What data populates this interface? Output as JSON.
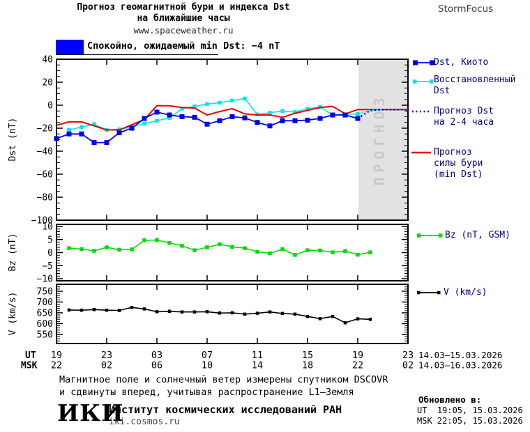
{
  "header": {
    "title_line1": "Прогноз геомагнитной бури и индекса Dst",
    "title_line2": "на ближайшие часы",
    "website": "www.spaceweather.ru",
    "brand": "StormFocus"
  },
  "status": {
    "label": "Спокойно, ожидаемый min Dst: −4 nT",
    "box_color": "#0000ff"
  },
  "legend": {
    "dst_kyoto": "Dst, Киото",
    "restored_line1": "Восстановленный",
    "restored_line2": "Dst",
    "forecast_line1": "Прогноз Dst",
    "forecast_line2": "на 2-4 часа",
    "storm_line1": "Прогноз",
    "storm_line2": "силы бури",
    "storm_line3": "(min Dst)",
    "bz": "Bz (nT, GSM)",
    "v": "V (km/s)"
  },
  "chart_data": {
    "type": "line",
    "x_axis": {
      "ut_label": "UT",
      "msk_label": "MSK",
      "ut_ticks": [
        "19",
        "23",
        "03",
        "07",
        "11",
        "15",
        "19",
        "23"
      ],
      "msk_ticks": [
        "22",
        "02",
        "06",
        "10",
        "14",
        "18",
        "22",
        "02"
      ],
      "ut_date_range": "14.03–15.03.2026",
      "msk_date_range": "14.03–16.03.2026",
      "hours_span": 28,
      "tick_step_hours": 4
    },
    "forecast_region": {
      "label": "ПРОГНОЗ",
      "start_hour": 24,
      "bg_color": "#e2e2e2",
      "text_color": "#c9c9c9"
    },
    "panels": [
      {
        "id": "dst",
        "ylabel": "Dst (nT)",
        "ylim": [
          -100,
          40
        ],
        "yticks": [
          40,
          20,
          0,
          -20,
          -40,
          -60,
          -80,
          -100
        ],
        "minor_step": 5
      },
      {
        "id": "bz",
        "ylabel": "Bz (nT)",
        "ylim": [
          -10.8,
          10.8
        ],
        "yticks": [
          10,
          5,
          0,
          -5,
          -10
        ],
        "minor_step": 1
      },
      {
        "id": "v",
        "ylabel": "V (km/s)",
        "ylim": [
          508,
          782
        ],
        "yticks": [
          750,
          700,
          650,
          600,
          550
        ],
        "minor_step": 10
      }
    ],
    "series": [
      {
        "name": "dst_restored",
        "panel": "dst",
        "color": "#00e8e8",
        "style": "solid",
        "width": 1.6,
        "marker_size": 5.5,
        "start_hour": 1,
        "values": [
          -21.5,
          -19,
          -16.5,
          -21.5,
          -21,
          -19,
          -16,
          -13.5,
          -11,
          -3,
          -1,
          1,
          2.2,
          4,
          5.8,
          -8,
          -6.5,
          -5,
          -6,
          -3,
          -1.5,
          -8.5,
          -8,
          -7.5
        ]
      },
      {
        "name": "storm_forecast",
        "panel": "dst",
        "color": "#e80000",
        "style": "solid",
        "width": 2,
        "start_hour": 0,
        "values": [
          -17.5,
          -14.5,
          -14.5,
          -18,
          -21.5,
          -21.5,
          -17,
          -12.5,
          -0.5,
          -0.5,
          -2,
          -2.5,
          -8.5,
          -5.5,
          -3,
          -7.5,
          -8.5,
          -8.5,
          -10.5,
          -7,
          -4.5,
          -2,
          -1,
          -7.5,
          -3.8,
          -3.8,
          -3.8,
          -3.8,
          -3.8
        ]
      },
      {
        "name": "dst_kyoto",
        "panel": "dst",
        "color": "#0000e8",
        "style": "solid",
        "width": 1.8,
        "marker_size": 7,
        "start_hour": 0,
        "values": [
          -29,
          -25,
          -25,
          -32.5,
          -32.5,
          -24,
          -20,
          -11.5,
          -6,
          -8.5,
          -10,
          -10.5,
          -16.5,
          -13.5,
          -10,
          -11,
          -15,
          -18,
          -13.5,
          -13.5,
          -13,
          -11.5,
          -8.5,
          -8.5,
          -11.5
        ]
      },
      {
        "name": "restored_forecast",
        "panel": "dst",
        "color": "#00e8e8",
        "style": "dotted",
        "start_hour": 24,
        "values": [
          -7.5,
          -4.5,
          -3.9
        ]
      },
      {
        "name": "dst_forecast",
        "panel": "dst",
        "color": "#0000e8",
        "style": "dotted",
        "start_hour": 24,
        "values": [
          -11.5,
          -4.5,
          -3.9,
          -3.9,
          -3.9
        ]
      },
      {
        "name": "bz_gsm",
        "panel": "bz",
        "color": "#00dd00",
        "style": "solid",
        "width": 1.6,
        "marker_size": 5.5,
        "start_hour": 1,
        "values": [
          1.7,
          1.3,
          0.7,
          2.0,
          1.1,
          1.2,
          4.7,
          4.8,
          3.7,
          2.6,
          0.9,
          2.0,
          3.2,
          2.2,
          1.7,
          0.3,
          -0.3,
          1.3,
          -0.9,
          0.9,
          0.8,
          0.1,
          0.6,
          -0.8,
          0.1
        ]
      },
      {
        "name": "v_wind",
        "panel": "v",
        "color": "#000000",
        "style": "solid",
        "width": 1.6,
        "marker_size": 4.5,
        "start_hour": 1,
        "values": [
          663,
          662,
          665,
          662,
          661,
          675,
          668,
          655,
          657,
          654,
          654,
          655,
          649,
          650,
          644,
          648,
          654,
          647,
          644,
          633,
          623,
          633,
          604,
          622,
          620
        ]
      }
    ]
  },
  "footer": {
    "note_line1": "Магнитное поле и солнечный ветер измерены спутником DSCOVR",
    "note_line2": "и сдвинуты вперед, учитывая распространение L1–Земля",
    "updated_label": "Обновлено в:",
    "updated_ut": "UT  19:05, 15.03.2026",
    "updated_msk": "MSK 22:05, 15.03.2026",
    "logo": "ИКИ",
    "institute": "Институт космических исследований РАН",
    "institute_url": "iki.cosmos.ru"
  }
}
